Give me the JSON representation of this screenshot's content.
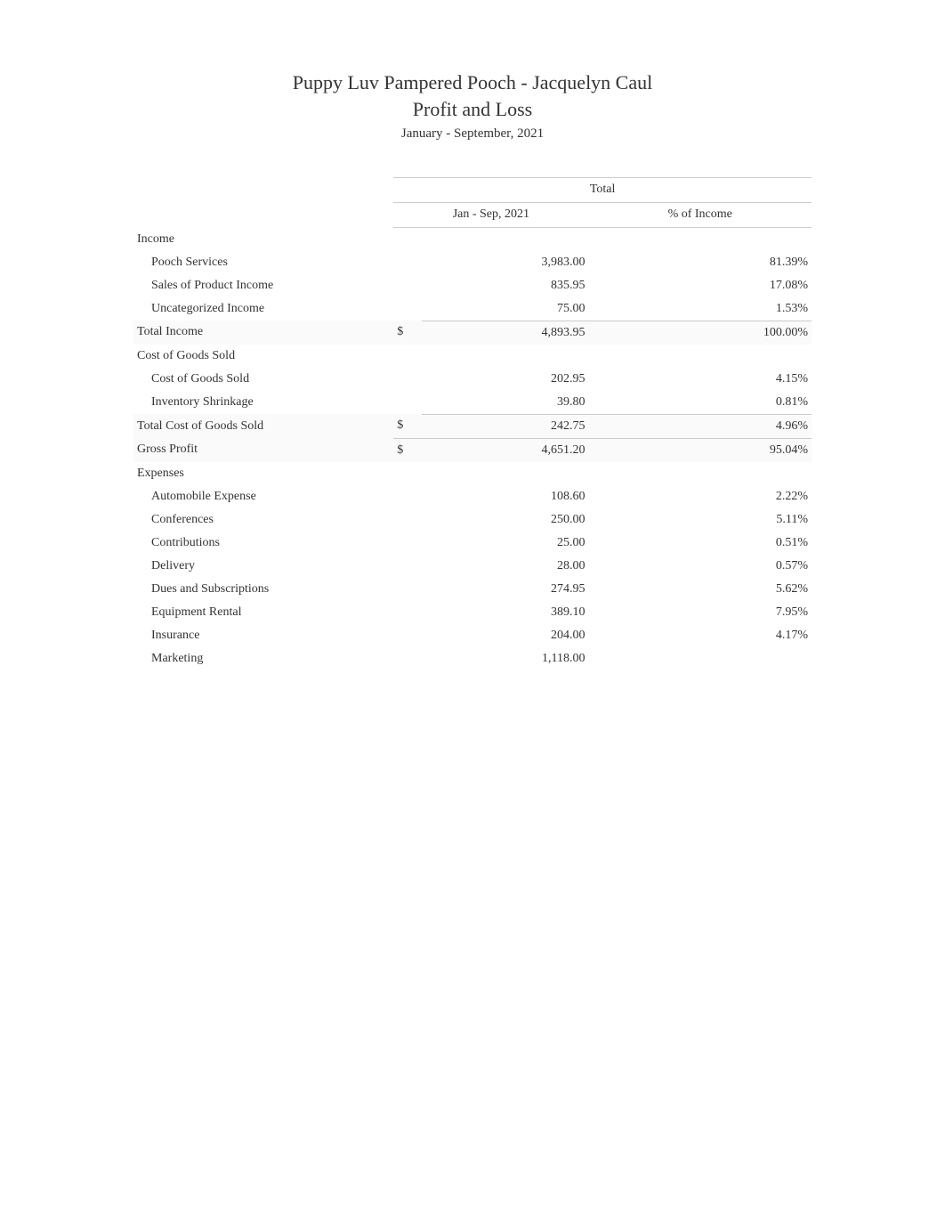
{
  "header": {
    "title": "Puppy Luv Pampered Pooch - Jacquelyn Caul",
    "subtitle": "Profit and Loss",
    "period": "January - September, 2021"
  },
  "columns": {
    "total_header": "Total",
    "period_col": "Jan - Sep, 2021",
    "percent_col": "% of Income"
  },
  "sections": {
    "income": {
      "label": "Income",
      "rows": [
        {
          "label": "Pooch Services",
          "amount": "3,983.00",
          "percent": "81.39%"
        },
        {
          "label": "Sales of Product Income",
          "amount": "835.95",
          "percent": "17.08%"
        },
        {
          "label": "Uncategorized Income",
          "amount": "75.00",
          "percent": "1.53%"
        }
      ],
      "total": {
        "label": "Total Income",
        "currency": "$",
        "amount": "4,893.95",
        "percent": "100.00%"
      }
    },
    "cogs": {
      "label": "Cost of Goods Sold",
      "rows": [
        {
          "label": "Cost of Goods Sold",
          "amount": "202.95",
          "percent": "4.15%"
        },
        {
          "label": "Inventory Shrinkage",
          "amount": "39.80",
          "percent": "0.81%"
        }
      ],
      "total": {
        "label": "Total Cost of Goods Sold",
        "currency": "$",
        "amount": "242.75",
        "percent": "4.96%"
      }
    },
    "gross_profit": {
      "label": "Gross Profit",
      "currency": "$",
      "amount": "4,651.20",
      "percent": "95.04%"
    },
    "expenses": {
      "label": "Expenses",
      "rows": [
        {
          "label": "Automobile Expense",
          "amount": "108.60",
          "percent": "2.22%"
        },
        {
          "label": "Conferences",
          "amount": "250.00",
          "percent": "5.11%"
        },
        {
          "label": "Contributions",
          "amount": "25.00",
          "percent": "0.51%"
        },
        {
          "label": "Delivery",
          "amount": "28.00",
          "percent": "0.57%"
        },
        {
          "label": "Dues and Subscriptions",
          "amount": "274.95",
          "percent": "5.62%"
        },
        {
          "label": "Equipment Rental",
          "amount": "389.10",
          "percent": "7.95%"
        },
        {
          "label": "Insurance",
          "amount": "204.00",
          "percent": "4.17%"
        },
        {
          "label": "Marketing",
          "amount": "1,118.00",
          "percent": ""
        }
      ]
    }
  },
  "styling": {
    "background_color": "#ffffff",
    "text_color": "#333333",
    "border_color": "#cccccc",
    "total_row_bg": "#fafafa",
    "font_family": "Georgia, Times New Roman, serif",
    "title_fontsize": 22,
    "body_fontsize": 14,
    "period_fontsize": 15
  }
}
